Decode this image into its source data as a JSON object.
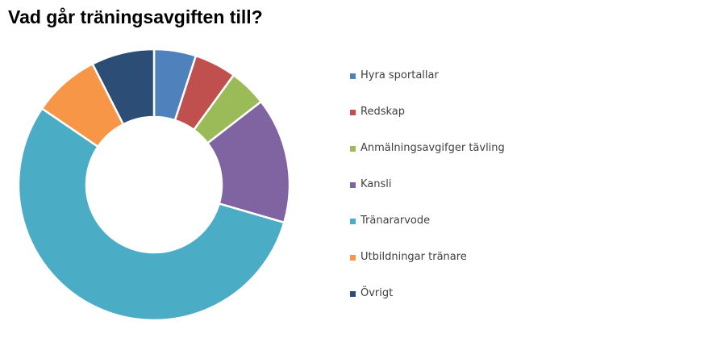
{
  "chart_data": {
    "type": "pie",
    "title": "Vad går träningsavgiften till?",
    "categories": [
      "Hyra sportallar",
      "Redskap",
      "Anmälningsavgifger tävling",
      "Kansli",
      "Tränararvode",
      "Utbildningar tränare",
      "Övrigt"
    ],
    "values": [
      5,
      5,
      4.5,
      15,
      55,
      8,
      7.5
    ],
    "colors": [
      "#4f81bd",
      "#c0504d",
      "#9bbb59",
      "#8064a2",
      "#4bacc6",
      "#f79646",
      "#2c4d75"
    ],
    "legend": "right"
  }
}
